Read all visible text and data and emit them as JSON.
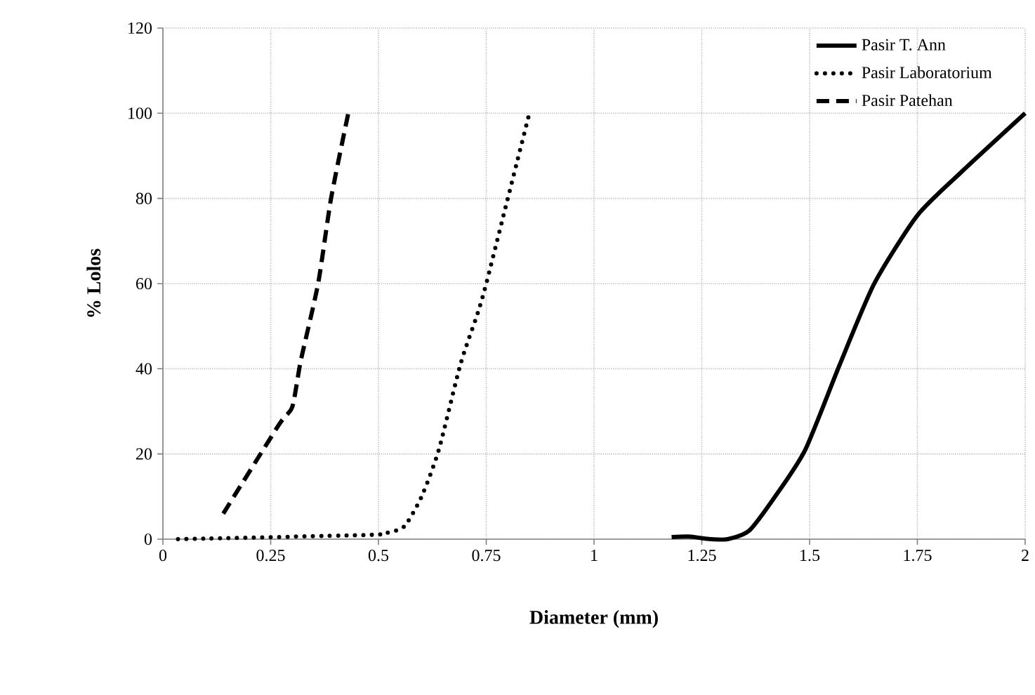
{
  "chart_data": {
    "type": "line",
    "xlabel": "Diameter (mm)",
    "ylabel": "% Lolos",
    "xlim": [
      0,
      2
    ],
    "xticks": [
      0,
      0.25,
      0.5,
      0.75,
      1,
      1.25,
      1.5,
      1.75,
      2
    ],
    "ylim": [
      0,
      120
    ],
    "yticks": [
      0,
      20,
      40,
      60,
      80,
      100,
      120
    ],
    "grid": true,
    "legend": "top right",
    "marker": "none",
    "series": [
      {
        "name": "Pasir T. Ann",
        "color": "#000000",
        "line_style": "solid",
        "x": [
          1.18,
          1.22,
          1.27,
          1.31,
          1.36,
          1.42,
          1.49,
          1.57,
          1.65,
          1.75,
          1.85,
          2.0
        ],
        "values": [
          0.5,
          0.6,
          0,
          0,
          2,
          10,
          21,
          41,
          60,
          76,
          86,
          100
        ]
      },
      {
        "name": "Pasir Laboratorium",
        "color": "#000000",
        "line_style": "dotted",
        "x": [
          0.035,
          0.48,
          0.52,
          0.56,
          0.6,
          0.64,
          0.69,
          0.73,
          0.75,
          0.79,
          0.82,
          0.85
        ],
        "values": [
          0,
          1,
          1.5,
          3,
          10,
          21,
          41,
          53,
          60,
          76,
          88,
          100
        ]
      },
      {
        "name": "Pasir Patehan",
        "color": "#000000",
        "line_style": "dashed",
        "x": [
          0.14,
          0.27,
          0.3,
          0.32,
          0.36,
          0.39,
          0.43
        ],
        "values": [
          6,
          27,
          31,
          42,
          60,
          80,
          100
        ]
      }
    ]
  }
}
